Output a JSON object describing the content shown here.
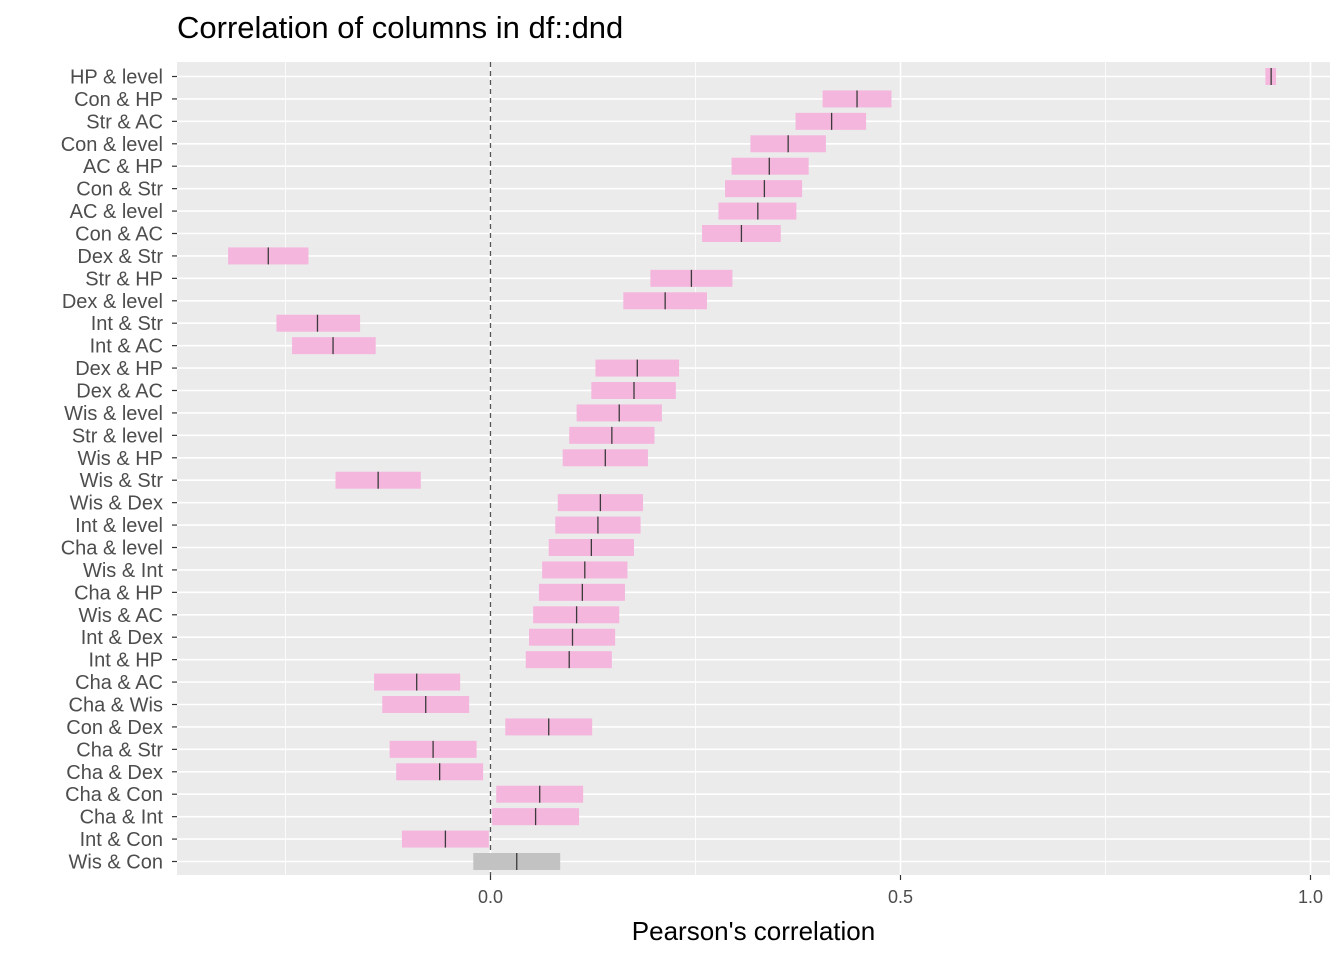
{
  "chart_data": {
    "type": "interval",
    "title": "Correlation of columns in df::dnd",
    "xlabel": "Pearson's correlation",
    "ylabel": "",
    "xlim": [
      -0.385,
      1.02
    ],
    "x_ticks": [
      0.0,
      0.5,
      1.0
    ],
    "x_tick_labels": [
      "0.0",
      "0.5",
      "1.0"
    ],
    "reference_line": 0.0,
    "grid": true,
    "colors": {
      "significant": "#f4b6dd",
      "nonsignificant": "#c2c2c2",
      "estimate": "#3a3a3a",
      "panel": "#ebebeb",
      "grid": "#ffffff",
      "refline": "#555555"
    },
    "rows": [
      {
        "pair": "HP & level",
        "estimate": 0.952,
        "lower": 0.945,
        "upper": 0.958,
        "significant": true
      },
      {
        "pair": "Con & HP",
        "estimate": 0.447,
        "lower": 0.405,
        "upper": 0.489,
        "significant": true
      },
      {
        "pair": "Str & AC",
        "estimate": 0.416,
        "lower": 0.372,
        "upper": 0.458,
        "significant": true
      },
      {
        "pair": "Con & level",
        "estimate": 0.363,
        "lower": 0.317,
        "upper": 0.409,
        "significant": true
      },
      {
        "pair": "AC & HP",
        "estimate": 0.34,
        "lower": 0.294,
        "upper": 0.388,
        "significant": true
      },
      {
        "pair": "Con & Str",
        "estimate": 0.334,
        "lower": 0.286,
        "upper": 0.38,
        "significant": true
      },
      {
        "pair": "AC & level",
        "estimate": 0.326,
        "lower": 0.278,
        "upper": 0.373,
        "significant": true
      },
      {
        "pair": "Con & AC",
        "estimate": 0.306,
        "lower": 0.258,
        "upper": 0.354,
        "significant": true
      },
      {
        "pair": "Dex & Str",
        "estimate": -0.271,
        "lower": -0.32,
        "upper": -0.222,
        "significant": true
      },
      {
        "pair": "Str & HP",
        "estimate": 0.245,
        "lower": 0.195,
        "upper": 0.295,
        "significant": true
      },
      {
        "pair": "Dex & level",
        "estimate": 0.213,
        "lower": 0.162,
        "upper": 0.264,
        "significant": true
      },
      {
        "pair": "Int & Str",
        "estimate": -0.211,
        "lower": -0.261,
        "upper": -0.159,
        "significant": true
      },
      {
        "pair": "Int & AC",
        "estimate": -0.192,
        "lower": -0.242,
        "upper": -0.14,
        "significant": true
      },
      {
        "pair": "Dex & HP",
        "estimate": 0.179,
        "lower": 0.128,
        "upper": 0.23,
        "significant": true
      },
      {
        "pair": "Dex & AC",
        "estimate": 0.175,
        "lower": 0.123,
        "upper": 0.226,
        "significant": true
      },
      {
        "pair": "Wis & level",
        "estimate": 0.157,
        "lower": 0.105,
        "upper": 0.209,
        "significant": true
      },
      {
        "pair": "Str & level",
        "estimate": 0.148,
        "lower": 0.096,
        "upper": 0.2,
        "significant": true
      },
      {
        "pair": "Wis & HP",
        "estimate": 0.14,
        "lower": 0.088,
        "upper": 0.192,
        "significant": true
      },
      {
        "pair": "Wis & Str",
        "estimate": -0.137,
        "lower": -0.189,
        "upper": -0.085,
        "significant": true
      },
      {
        "pair": "Wis & Dex",
        "estimate": 0.134,
        "lower": 0.082,
        "upper": 0.186,
        "significant": true
      },
      {
        "pair": "Int & level",
        "estimate": 0.131,
        "lower": 0.079,
        "upper": 0.183,
        "significant": true
      },
      {
        "pair": "Cha & level",
        "estimate": 0.123,
        "lower": 0.071,
        "upper": 0.175,
        "significant": true
      },
      {
        "pair": "Wis & Int",
        "estimate": 0.115,
        "lower": 0.063,
        "upper": 0.167,
        "significant": true
      },
      {
        "pair": "Cha & HP",
        "estimate": 0.112,
        "lower": 0.059,
        "upper": 0.164,
        "significant": true
      },
      {
        "pair": "Wis & AC",
        "estimate": 0.105,
        "lower": 0.052,
        "upper": 0.157,
        "significant": true
      },
      {
        "pair": "Int & Dex",
        "estimate": 0.1,
        "lower": 0.047,
        "upper": 0.152,
        "significant": true
      },
      {
        "pair": "Int & HP",
        "estimate": 0.096,
        "lower": 0.043,
        "upper": 0.148,
        "significant": true
      },
      {
        "pair": "Cha & AC",
        "estimate": -0.09,
        "lower": -0.142,
        "upper": -0.037,
        "significant": true
      },
      {
        "pair": "Cha & Wis",
        "estimate": -0.079,
        "lower": -0.132,
        "upper": -0.026,
        "significant": true
      },
      {
        "pair": "Con & Dex",
        "estimate": 0.071,
        "lower": 0.018,
        "upper": 0.124,
        "significant": true
      },
      {
        "pair": "Cha & Str",
        "estimate": -0.07,
        "lower": -0.123,
        "upper": -0.017,
        "significant": true
      },
      {
        "pair": "Cha & Dex",
        "estimate": -0.062,
        "lower": -0.115,
        "upper": -0.009,
        "significant": true
      },
      {
        "pair": "Cha & Con",
        "estimate": 0.06,
        "lower": 0.007,
        "upper": 0.113,
        "significant": true
      },
      {
        "pair": "Cha & Int",
        "estimate": 0.055,
        "lower": 0.002,
        "upper": 0.108,
        "significant": true
      },
      {
        "pair": "Int & Con",
        "estimate": -0.055,
        "lower": -0.108,
        "upper": -0.002,
        "significant": true
      },
      {
        "pair": "Wis & Con",
        "estimate": 0.032,
        "lower": -0.021,
        "upper": 0.085,
        "significant": false
      }
    ]
  }
}
